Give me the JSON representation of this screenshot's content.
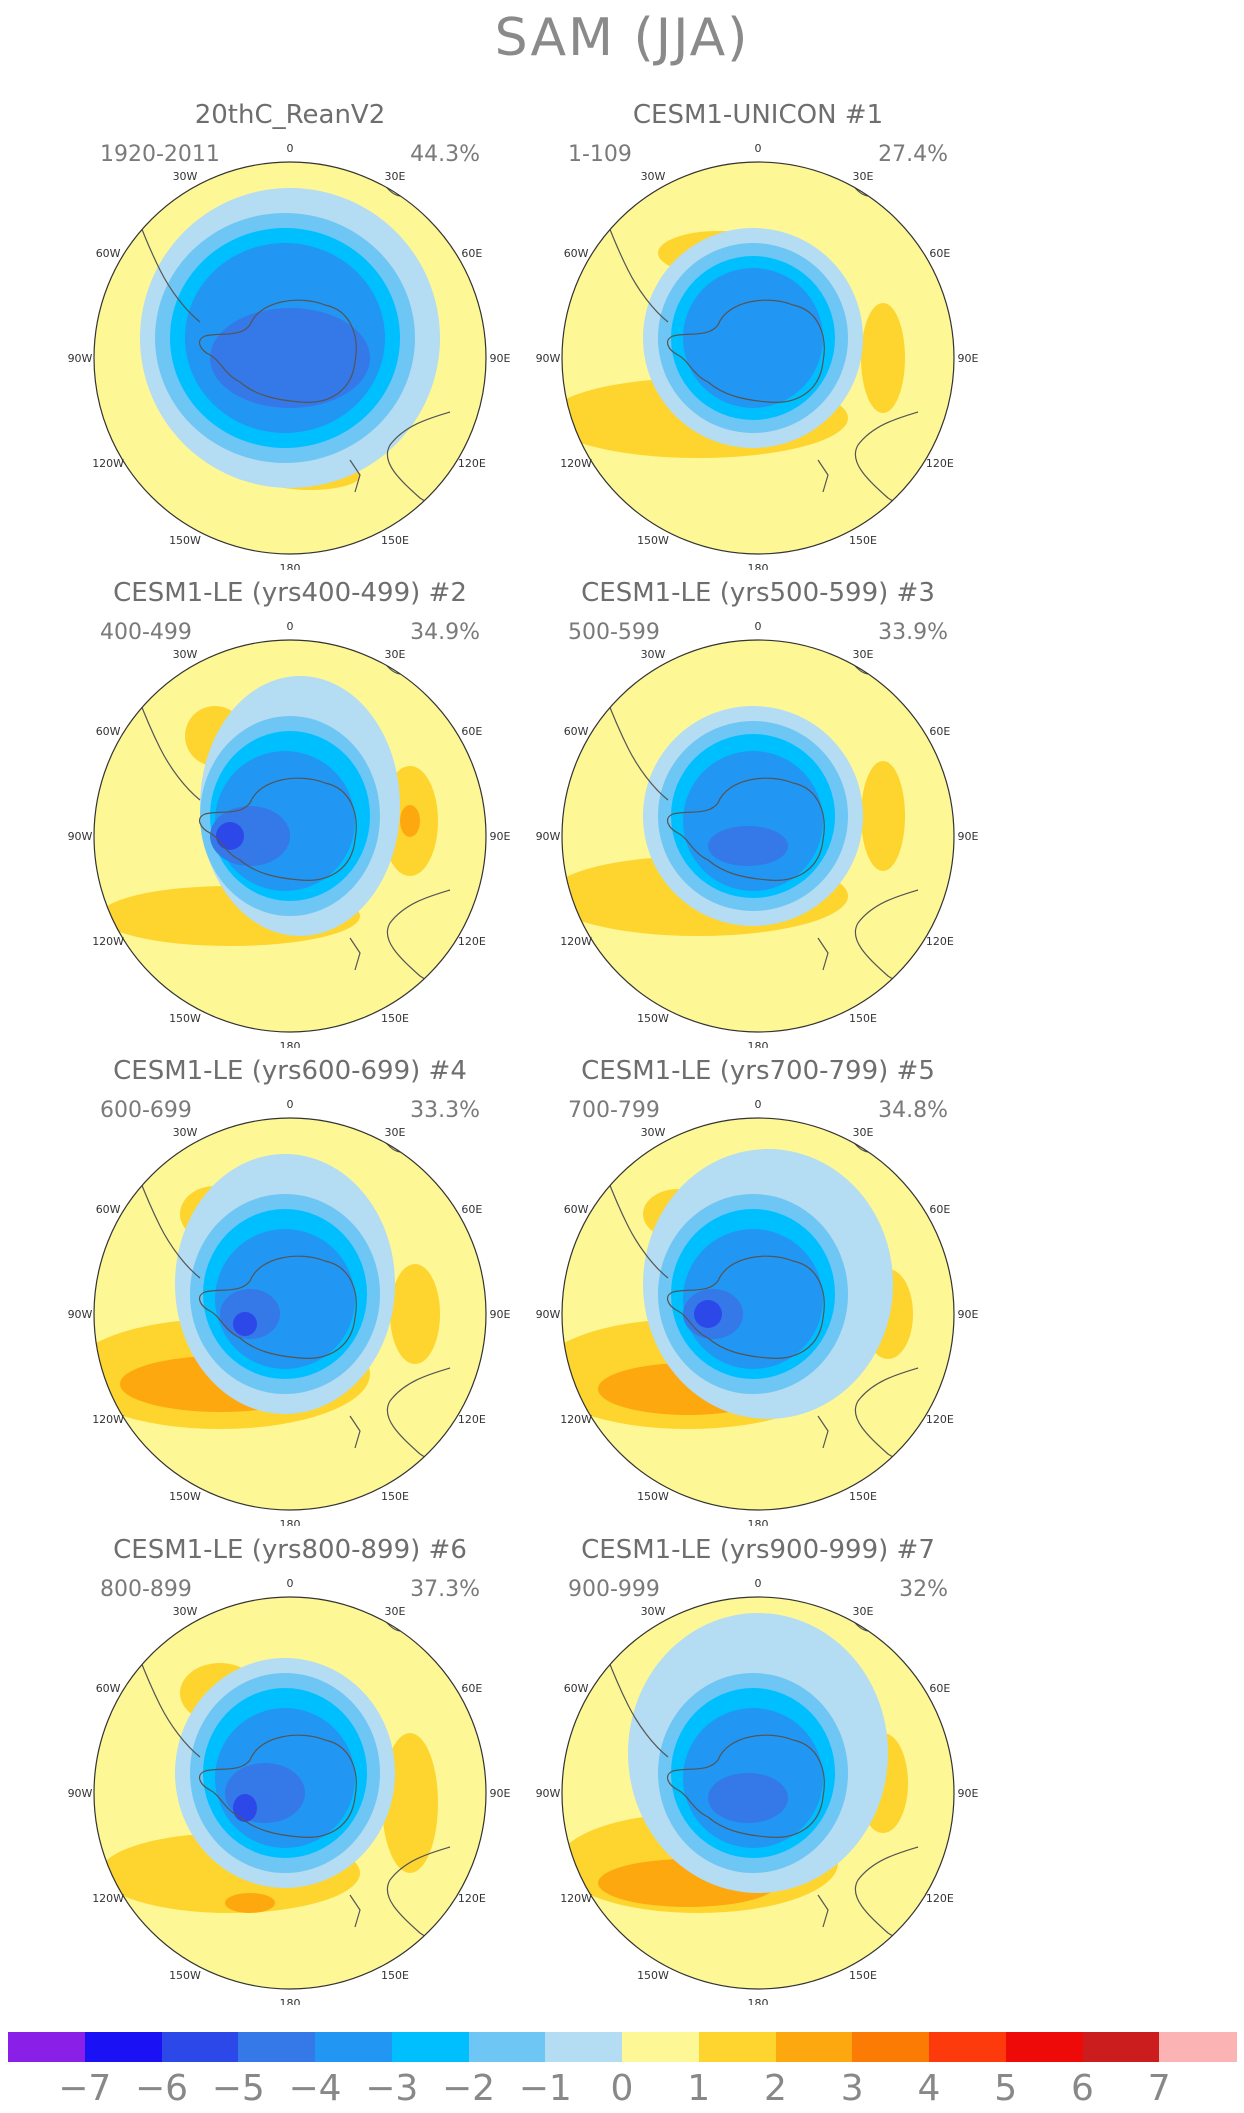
{
  "title": "SAM (JJA)",
  "panels": [
    {
      "title": "20thC_ReanV2",
      "period": "1920-2011",
      "variance": "44.3%"
    },
    {
      "title": "CESM1-UNICON      #1",
      "period": "1-109",
      "variance": "27.4%"
    },
    {
      "title": "CESM1-LE (yrs400-499) #2",
      "period": "400-499",
      "variance": "34.9%"
    },
    {
      "title": "CESM1-LE (yrs500-599) #3",
      "period": "500-599",
      "variance": "33.9%"
    },
    {
      "title": "CESM1-LE (yrs600-699) #4",
      "period": "600-699",
      "variance": "33.3%"
    },
    {
      "title": "CESM1-LE (yrs700-799) #5",
      "period": "700-799",
      "variance": "34.8%"
    },
    {
      "title": "CESM1-LE (yrs800-899) #6",
      "period": "800-899",
      "variance": "37.3%"
    },
    {
      "title": "CESM1-LE (yrs900-999) #7",
      "period": "900-999",
      "variance": "32%"
    }
  ],
  "longitude_labels": [
    "0",
    "30E",
    "60E",
    "90E",
    "120E",
    "150E",
    "180",
    "150W",
    "120W",
    "90W",
    "60W",
    "30W"
  ],
  "colorbar": {
    "labels": [
      "−7",
      "−6",
      "−5",
      "−4",
      "−3",
      "−2",
      "−1",
      "0",
      "1",
      "2",
      "3",
      "4",
      "5",
      "6",
      "7"
    ],
    "colors": [
      "#8a20e8",
      "#1a12f5",
      "#2c48e8",
      "#3578e8",
      "#2196f3",
      "#00bfff",
      "#6ec6f5",
      "#b4dcf2",
      "#fdf796",
      "#fdd52e",
      "#fda80f",
      "#fb7b05",
      "#fc3a0c",
      "#ef0a0a",
      "#cb1d1d",
      "#fcb3b3"
    ]
  }
}
